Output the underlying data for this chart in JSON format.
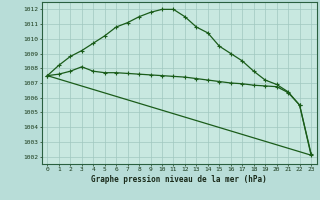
{
  "bg_color": "#b8ddd8",
  "plot_bg_color": "#c8e8e0",
  "grid_color": "#a0c8c0",
  "line_color": "#1a5c1a",
  "title": "Graphe pression niveau de la mer (hPa)",
  "xlim": [
    -0.5,
    23.5
  ],
  "ylim": [
    1001.5,
    1012.5
  ],
  "xticks": [
    0,
    1,
    2,
    3,
    4,
    5,
    6,
    7,
    8,
    9,
    10,
    11,
    12,
    13,
    14,
    15,
    16,
    17,
    18,
    19,
    20,
    21,
    22,
    23
  ],
  "yticks": [
    1002,
    1003,
    1004,
    1005,
    1006,
    1007,
    1008,
    1009,
    1010,
    1011,
    1012
  ],
  "line1_x": [
    0,
    1,
    2,
    3,
    4,
    5,
    6,
    7,
    8,
    9,
    10,
    11,
    12,
    13,
    14,
    15,
    16,
    17,
    18,
    19,
    20,
    21,
    22,
    23
  ],
  "line1_y": [
    1007.5,
    1008.2,
    1008.8,
    1009.2,
    1009.7,
    1010.2,
    1010.8,
    1011.1,
    1011.5,
    1011.8,
    1012.0,
    1012.0,
    1011.5,
    1010.8,
    1010.4,
    1009.5,
    1009.0,
    1008.5,
    1007.8,
    1007.2,
    1006.9,
    1006.4,
    1005.5,
    1002.2
  ],
  "line2_x": [
    0,
    1,
    2,
    3,
    4,
    5,
    6,
    7,
    8,
    9,
    10,
    11,
    12,
    13,
    14,
    15,
    16,
    17,
    18,
    19,
    20,
    21,
    22,
    23
  ],
  "line2_y": [
    1007.5,
    1007.6,
    1007.8,
    1008.1,
    1007.8,
    1007.7,
    1007.7,
    1007.65,
    1007.6,
    1007.55,
    1007.5,
    1007.45,
    1007.4,
    1007.3,
    1007.2,
    1007.1,
    1007.0,
    1006.95,
    1006.85,
    1006.8,
    1006.75,
    1006.35,
    1005.5,
    1002.1
  ],
  "line3_x": [
    0,
    23
  ],
  "line3_y": [
    1007.5,
    1002.1
  ]
}
